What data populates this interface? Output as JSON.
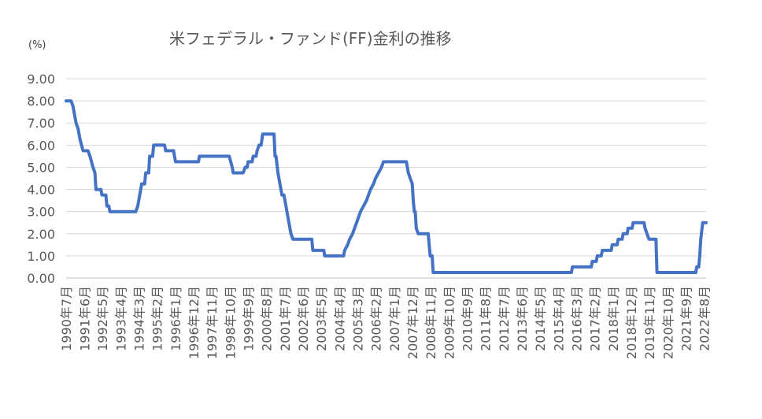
{
  "chart_data": {
    "type": "line",
    "title": "米フェデラル・ファンド(FF)金利の推移",
    "unit_label": "(%)",
    "ylim": [
      0,
      9
    ],
    "yticks": [
      "0.00",
      "1.00",
      "2.00",
      "3.00",
      "4.00",
      "5.00",
      "6.00",
      "7.00",
      "8.00",
      "9.00"
    ],
    "xlim": [
      1990.5,
      2022.67
    ],
    "xticks": [
      {
        "label": "1990年7月",
        "x": 1990.5
      },
      {
        "label": "1991年6月",
        "x": 1991.42
      },
      {
        "label": "1992年5月",
        "x": 1992.33
      },
      {
        "label": "1993年4月",
        "x": 1993.25
      },
      {
        "label": "1994年3月",
        "x": 1994.17
      },
      {
        "label": "1995年2月",
        "x": 1995.08
      },
      {
        "label": "1996年1月",
        "x": 1996.0
      },
      {
        "label": "1996年12月",
        "x": 1996.92
      },
      {
        "label": "1997年11月",
        "x": 1997.83
      },
      {
        "label": "1998年10月",
        "x": 1998.75
      },
      {
        "label": "1999年9月",
        "x": 1999.67
      },
      {
        "label": "2000年8月",
        "x": 2000.58
      },
      {
        "label": "2001年7月",
        "x": 2001.5
      },
      {
        "label": "2002年6月",
        "x": 2002.42
      },
      {
        "label": "2003年5月",
        "x": 2003.33
      },
      {
        "label": "2004年4月",
        "x": 2004.25
      },
      {
        "label": "2005年3月",
        "x": 2005.17
      },
      {
        "label": "2006年2月",
        "x": 2006.08
      },
      {
        "label": "2007年1月",
        "x": 2007.0
      },
      {
        "label": "2007年12月",
        "x": 2007.92
      },
      {
        "label": "2008年11月",
        "x": 2008.83
      },
      {
        "label": "2009年10月",
        "x": 2009.75
      },
      {
        "label": "2010年9月",
        "x": 2010.67
      },
      {
        "label": "2011年8月",
        "x": 2011.58
      },
      {
        "label": "2012年7月",
        "x": 2012.5
      },
      {
        "label": "2013年6月",
        "x": 2013.42
      },
      {
        "label": "2014年5月",
        "x": 2014.33
      },
      {
        "label": "2015年4月",
        "x": 2015.25
      },
      {
        "label": "2016年3月",
        "x": 2016.17
      },
      {
        "label": "2017年2月",
        "x": 2017.08
      },
      {
        "label": "2018年1月",
        "x": 2018.0
      },
      {
        "label": "2018年12月",
        "x": 2018.92
      },
      {
        "label": "2019年11月",
        "x": 2019.83
      },
      {
        "label": "2020年10月",
        "x": 2020.75
      },
      {
        "label": "2021年9月",
        "x": 2021.67
      },
      {
        "label": "2022年8月",
        "x": 2022.58
      }
    ],
    "grid": true,
    "series_color": "#4472c4",
    "points": [
      [
        1990.5,
        8.0
      ],
      [
        1990.75,
        8.0
      ],
      [
        1990.85,
        7.75
      ],
      [
        1991.0,
        7.0
      ],
      [
        1991.1,
        6.75
      ],
      [
        1991.2,
        6.25
      ],
      [
        1991.35,
        5.75
      ],
      [
        1991.6,
        5.75
      ],
      [
        1991.7,
        5.5
      ],
      [
        1991.85,
        5.0
      ],
      [
        1991.95,
        4.75
      ],
      [
        1992.0,
        4.0
      ],
      [
        1992.25,
        4.0
      ],
      [
        1992.3,
        3.75
      ],
      [
        1992.5,
        3.75
      ],
      [
        1992.55,
        3.25
      ],
      [
        1992.65,
        3.25
      ],
      [
        1992.7,
        3.0
      ],
      [
        1994.0,
        3.0
      ],
      [
        1994.1,
        3.25
      ],
      [
        1994.2,
        3.75
      ],
      [
        1994.3,
        4.25
      ],
      [
        1994.45,
        4.25
      ],
      [
        1994.5,
        4.75
      ],
      [
        1994.65,
        4.75
      ],
      [
        1994.7,
        5.5
      ],
      [
        1994.85,
        5.5
      ],
      [
        1994.9,
        6.0
      ],
      [
        1995.45,
        6.0
      ],
      [
        1995.5,
        5.75
      ],
      [
        1995.9,
        5.75
      ],
      [
        1995.95,
        5.5
      ],
      [
        1996.0,
        5.25
      ],
      [
        1997.15,
        5.25
      ],
      [
        1997.2,
        5.5
      ],
      [
        1998.7,
        5.5
      ],
      [
        1998.85,
        5.0
      ],
      [
        1998.9,
        4.75
      ],
      [
        1999.4,
        4.75
      ],
      [
        1999.5,
        5.0
      ],
      [
        1999.6,
        5.0
      ],
      [
        1999.65,
        5.25
      ],
      [
        1999.85,
        5.25
      ],
      [
        1999.9,
        5.5
      ],
      [
        2000.05,
        5.5
      ],
      [
        2000.1,
        5.75
      ],
      [
        2000.2,
        6.0
      ],
      [
        2000.3,
        6.0
      ],
      [
        2000.38,
        6.5
      ],
      [
        2000.95,
        6.5
      ],
      [
        2001.0,
        5.5
      ],
      [
        2001.05,
        5.5
      ],
      [
        2001.15,
        4.75
      ],
      [
        2001.3,
        4.0
      ],
      [
        2001.35,
        3.75
      ],
      [
        2001.45,
        3.75
      ],
      [
        2001.5,
        3.5
      ],
      [
        2001.6,
        3.0
      ],
      [
        2001.7,
        2.5
      ],
      [
        2001.8,
        2.0
      ],
      [
        2001.9,
        1.75
      ],
      [
        2002.85,
        1.75
      ],
      [
        2002.9,
        1.25
      ],
      [
        2003.45,
        1.25
      ],
      [
        2003.5,
        1.0
      ],
      [
        2004.45,
        1.0
      ],
      [
        2004.5,
        1.25
      ],
      [
        2004.65,
        1.5
      ],
      [
        2004.75,
        1.75
      ],
      [
        2004.9,
        2.0
      ],
      [
        2005.0,
        2.25
      ],
      [
        2005.1,
        2.5
      ],
      [
        2005.2,
        2.75
      ],
      [
        2005.3,
        3.0
      ],
      [
        2005.45,
        3.25
      ],
      [
        2005.6,
        3.5
      ],
      [
        2005.7,
        3.75
      ],
      [
        2005.8,
        4.0
      ],
      [
        2005.95,
        4.25
      ],
      [
        2006.05,
        4.5
      ],
      [
        2006.2,
        4.75
      ],
      [
        2006.35,
        5.0
      ],
      [
        2006.45,
        5.25
      ],
      [
        2007.6,
        5.25
      ],
      [
        2007.7,
        4.75
      ],
      [
        2007.8,
        4.5
      ],
      [
        2007.9,
        4.25
      ],
      [
        2007.95,
        3.5
      ],
      [
        2008.0,
        3.0
      ],
      [
        2008.05,
        3.0
      ],
      [
        2008.1,
        2.25
      ],
      [
        2008.2,
        2.0
      ],
      [
        2008.7,
        2.0
      ],
      [
        2008.75,
        1.5
      ],
      [
        2008.8,
        1.0
      ],
      [
        2008.9,
        1.0
      ],
      [
        2008.95,
        0.25
      ],
      [
        2015.9,
        0.25
      ],
      [
        2015.95,
        0.5
      ],
      [
        2016.9,
        0.5
      ],
      [
        2016.95,
        0.75
      ],
      [
        2017.15,
        0.75
      ],
      [
        2017.2,
        1.0
      ],
      [
        2017.4,
        1.0
      ],
      [
        2017.45,
        1.25
      ],
      [
        2017.9,
        1.25
      ],
      [
        2017.95,
        1.5
      ],
      [
        2018.2,
        1.5
      ],
      [
        2018.25,
        1.75
      ],
      [
        2018.45,
        1.75
      ],
      [
        2018.5,
        2.0
      ],
      [
        2018.7,
        2.0
      ],
      [
        2018.75,
        2.25
      ],
      [
        2018.95,
        2.25
      ],
      [
        2019.0,
        2.5
      ],
      [
        2019.55,
        2.5
      ],
      [
        2019.6,
        2.25
      ],
      [
        2019.7,
        2.0
      ],
      [
        2019.8,
        1.75
      ],
      [
        2020.15,
        1.75
      ],
      [
        2020.2,
        0.25
      ],
      [
        2022.15,
        0.25
      ],
      [
        2022.2,
        0.5
      ],
      [
        2022.3,
        0.5
      ],
      [
        2022.35,
        1.0
      ],
      [
        2022.4,
        1.75
      ],
      [
        2022.5,
        2.5
      ],
      [
        2022.67,
        2.5
      ]
    ]
  }
}
